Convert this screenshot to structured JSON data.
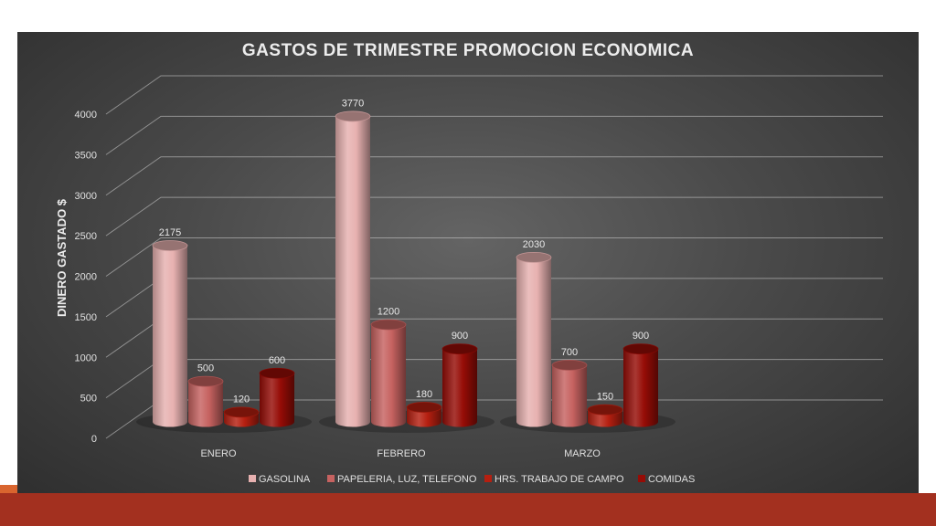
{
  "chart_data": {
    "type": "bar",
    "title": "GASTOS DE TRIMESTRE PROMOCION ECONOMICA",
    "xlabel": "",
    "ylabel": "DINERO GASTADO $",
    "categories": [
      "ENERO",
      "FEBRERO",
      "MARZO"
    ],
    "series": [
      {
        "name": "GASOLINA",
        "values": [
          2175,
          3770,
          2030
        ],
        "color": "#e7b1b0"
      },
      {
        "name": "PAPELERIA, LUZ, TELEFONO",
        "values": [
          500,
          1200,
          700
        ],
        "color": "#c66260"
      },
      {
        "name": "HRS. TRABAJO DE CAMPO",
        "values": [
          120,
          180,
          150
        ],
        "color": "#b51f10"
      },
      {
        "name": "COMIDAS",
        "values": [
          600,
          900,
          900
        ],
        "color": "#960c06"
      }
    ],
    "ylim": [
      0,
      4000
    ],
    "yticks": [
      0,
      500,
      1000,
      1500,
      2000,
      2500,
      3000,
      3500,
      4000
    ],
    "grid": true,
    "legend": "bottom",
    "style": "3d-cylinder"
  },
  "colors": {
    "panel_background": "#3d3d3d",
    "slide_band": "#a3301f",
    "text": "#e6e6e6"
  }
}
